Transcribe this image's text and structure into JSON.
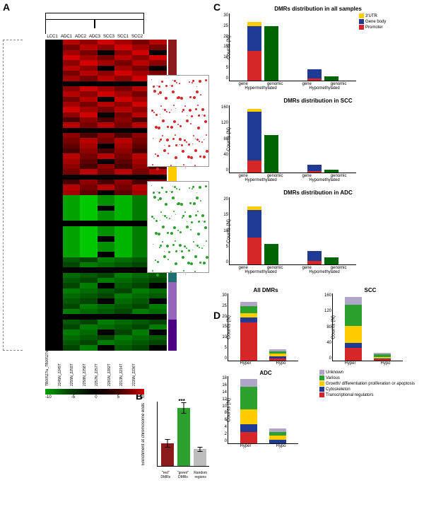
{
  "panels": {
    "a": "A",
    "b": "B",
    "c": "C",
    "d": "D"
  },
  "heatmap": {
    "col_labels": [
      "LCC1",
      "ADC1",
      "ADC2",
      "ADC3",
      "SCC3",
      "SCC1",
      "SCC2"
    ],
    "bottom_labels": [
      "TB00527tu_TB00527tu",
      "2245N_2245T",
      "2255N_2255T",
      "2258N_2258T",
      "2257N_2257T",
      "2281N_2282T",
      "2213N_2214T",
      "2235N_2236T"
    ],
    "cluster_colors": [
      "#8b1a1a",
      "#d62728",
      "#ff7f0e",
      "#ffcc00",
      "#ffff66",
      "#2ca02c",
      "#66c2a4",
      "#1f6f6f",
      "#9467bd",
      "#4b0082"
    ],
    "cluster_heights_pct": [
      22,
      6,
      8,
      10,
      4,
      10,
      8,
      10,
      12,
      10
    ],
    "scale_ticks": [
      "-10",
      "-5",
      "0",
      "5",
      "10"
    ],
    "rows": 60,
    "cols": 7
  },
  "inset_red": {
    "n_dots": 120,
    "color": "#d62728"
  },
  "inset_green": {
    "n_dots": 120,
    "color": "#2ca02c"
  },
  "panel_b": {
    "ylabel": "Enrichment at chromosome ends",
    "ymax": 4,
    "bars": [
      {
        "label": "\"red\" DMRs",
        "value": 1.4,
        "err": 0.25,
        "color": "#8b1a1a"
      },
      {
        "label": "\"green\" DMRs",
        "value": 3.6,
        "err": 0.35,
        "color": "#2ca02c",
        "stars": "***"
      },
      {
        "label": "Random regions",
        "value": 1.05,
        "err": 0.15,
        "color": "#bdbdbd"
      }
    ]
  },
  "panel_c": {
    "ylabel": "Counts (N)",
    "legend": [
      {
        "label": "3'UTR",
        "color": "#ffcc00"
      },
      {
        "label": "Gene body",
        "color": "#1f3a93"
      },
      {
        "label": "Promoter",
        "color": "#d62728"
      }
    ],
    "genomic_color": "#006400",
    "charts": [
      {
        "title": "DMRs distribution in all samples",
        "ymax": 30,
        "ytick_step": 5,
        "groups": [
          {
            "group": "Hypermethylated",
            "bars": [
              {
                "cat": "gene",
                "segs": [
                  {
                    "k": "Promoter",
                    "v": 13
                  },
                  {
                    "k": "Gene body",
                    "v": 11
                  },
                  {
                    "k": "3'UTR",
                    "v": 2
                  }
                ]
              },
              {
                "cat": "genomic",
                "segs": [
                  {
                    "k": "genomic",
                    "v": 24
                  }
                ]
              }
            ]
          },
          {
            "group": "Hypomethylated",
            "bars": [
              {
                "cat": "gene",
                "segs": [
                  {
                    "k": "Promoter",
                    "v": 1
                  },
                  {
                    "k": "Gene body",
                    "v": 4
                  },
                  {
                    "k": "3'UTR",
                    "v": 0
                  }
                ]
              },
              {
                "cat": "genomic",
                "segs": [
                  {
                    "k": "genomic",
                    "v": 2
                  }
                ]
              }
            ]
          }
        ]
      },
      {
        "title": "DMRs distribution in SCC",
        "ymax": 160,
        "ytick_step": 40,
        "groups": [
          {
            "group": "Hypermethylated",
            "bars": [
              {
                "cat": "gene",
                "segs": [
                  {
                    "k": "Promoter",
                    "v": 28
                  },
                  {
                    "k": "Gene body",
                    "v": 115
                  },
                  {
                    "k": "3'UTR",
                    "v": 7
                  }
                ]
              },
              {
                "cat": "genomic",
                "segs": [
                  {
                    "k": "genomic",
                    "v": 88
                  }
                ]
              }
            ]
          },
          {
            "group": "Hypomethylated",
            "bars": [
              {
                "cat": "gene",
                "segs": [
                  {
                    "k": "Promoter",
                    "v": 3
                  },
                  {
                    "k": "Gene body",
                    "v": 15
                  },
                  {
                    "k": "3'UTR",
                    "v": 1
                  }
                ]
              },
              {
                "cat": "genomic",
                "segs": [
                  {
                    "k": "genomic",
                    "v": 6
                  }
                ]
              }
            ]
          }
        ]
      },
      {
        "title": "DMRs distribution in ADC",
        "ymax": 20,
        "ytick_step": 5,
        "groups": [
          {
            "group": "Hypermethylated",
            "bars": [
              {
                "cat": "gene",
                "segs": [
                  {
                    "k": "Promoter",
                    "v": 8
                  },
                  {
                    "k": "Gene body",
                    "v": 8
                  },
                  {
                    "k": "3'UTR",
                    "v": 1
                  }
                ]
              },
              {
                "cat": "genomic",
                "segs": [
                  {
                    "k": "genomic",
                    "v": 6
                  }
                ]
              }
            ]
          },
          {
            "group": "Hypomethylated",
            "bars": [
              {
                "cat": "gene",
                "segs": [
                  {
                    "k": "Promoter",
                    "v": 1
                  },
                  {
                    "k": "Gene body",
                    "v": 3
                  },
                  {
                    "k": "3'UTR",
                    "v": 0
                  }
                ]
              },
              {
                "cat": "genomic",
                "segs": [
                  {
                    "k": "genomic",
                    "v": 2
                  }
                ]
              }
            ]
          }
        ]
      }
    ]
  },
  "panel_d": {
    "ylabel": "Counts (N)",
    "legend": [
      {
        "label": "Unknown",
        "color": "#b0a4c9"
      },
      {
        "label": "Various",
        "color": "#2ca02c"
      },
      {
        "label": "Growth/ differentiation proliferation or apoptosis",
        "color": "#ffcc00"
      },
      {
        "label": "Cytoskeleton",
        "color": "#1f3a93"
      },
      {
        "label": "Transcriptional regulators",
        "color": "#d62728"
      }
    ],
    "charts": [
      {
        "title": "All DMRs",
        "ymax": 30,
        "ytick_step": 5,
        "bars": [
          {
            "cat": "Hyper",
            "segs": [
              {
                "k": "Transcriptional regulators",
                "v": 17
              },
              {
                "k": "Cytoskeleton",
                "v": 2
              },
              {
                "k": "Growth/ differentiation proliferation or apoptosis",
                "v": 2
              },
              {
                "k": "Various",
                "v": 3
              },
              {
                "k": "Unknown",
                "v": 2
              }
            ]
          },
          {
            "cat": "Hypo",
            "segs": [
              {
                "k": "Transcriptional regulators",
                "v": 1
              },
              {
                "k": "Cytoskeleton",
                "v": 1
              },
              {
                "k": "Growth/ differentiation proliferation or apoptosis",
                "v": 1
              },
              {
                "k": "Various",
                "v": 1
              },
              {
                "k": "Unknown",
                "v": 1
              }
            ]
          }
        ]
      },
      {
        "title": "SCC",
        "ymax": 160,
        "ytick_step": 40,
        "bars": [
          {
            "cat": "Hyper",
            "segs": [
              {
                "k": "Transcriptional regulators",
                "v": 30
              },
              {
                "k": "Cytoskeleton",
                "v": 12
              },
              {
                "k": "Growth/ differentiation proliferation or apoptosis",
                "v": 40
              },
              {
                "k": "Various",
                "v": 50
              },
              {
                "k": "Unknown",
                "v": 18
              }
            ]
          },
          {
            "cat": "Hypo",
            "segs": [
              {
                "k": "Transcriptional regulators",
                "v": 3
              },
              {
                "k": "Cytoskeleton",
                "v": 2
              },
              {
                "k": "Growth/ differentiation proliferation or apoptosis",
                "v": 4
              },
              {
                "k": "Various",
                "v": 6
              },
              {
                "k": "Unknown",
                "v": 4
              }
            ]
          }
        ]
      },
      {
        "title": "ADC",
        "ymax": 18,
        "ytick_step": 2,
        "bars": [
          {
            "cat": "Hyper",
            "segs": [
              {
                "k": "Transcriptional regulators",
                "v": 3
              },
              {
                "k": "Cytoskeleton",
                "v": 2
              },
              {
                "k": "Growth/ differentiation proliferation or apoptosis",
                "v": 4
              },
              {
                "k": "Various",
                "v": 6
              },
              {
                "k": "Unknown",
                "v": 2
              }
            ]
          },
          {
            "cat": "Hypo",
            "segs": [
              {
                "k": "Transcriptional regulators",
                "v": 0
              },
              {
                "k": "Cytoskeleton",
                "v": 1
              },
              {
                "k": "Growth/ differentiation proliferation or apoptosis",
                "v": 1
              },
              {
                "k": "Various",
                "v": 1
              },
              {
                "k": "Unknown",
                "v": 1
              }
            ]
          }
        ]
      }
    ]
  }
}
